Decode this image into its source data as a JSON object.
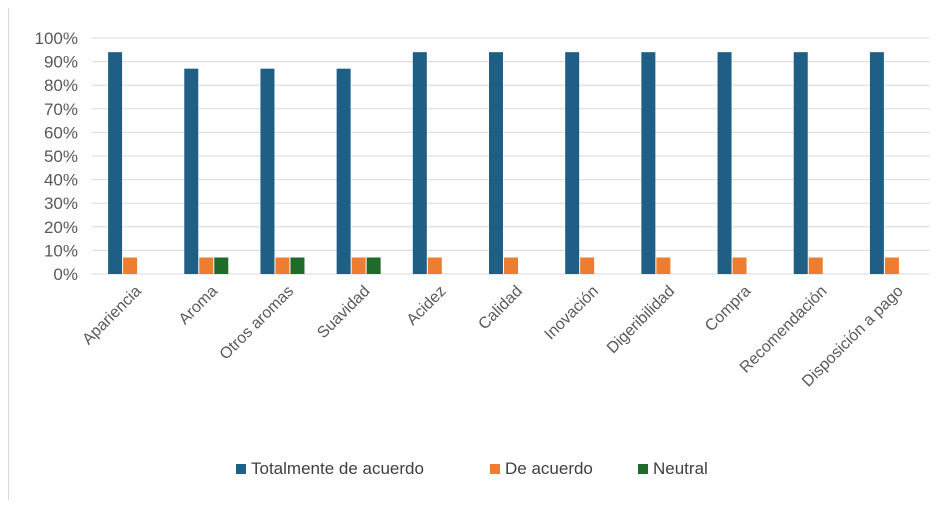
{
  "chart_data": {
    "type": "bar",
    "categories": [
      "Apariencia",
      "Aroma",
      "Otros aromas",
      "Suavidad",
      "Acidez",
      "Calidad",
      "Inovación",
      "Digeribilidad",
      "Compra",
      "Recomendación",
      "Disposición a pago"
    ],
    "series": [
      {
        "name": "Totalmente de acuerdo",
        "color": "#1f5f85",
        "values": [
          94,
          87,
          87,
          87,
          94,
          94,
          94,
          94,
          94,
          94,
          94
        ]
      },
      {
        "name": "De acuerdo",
        "color": "#ed7d31",
        "values": [
          7,
          7,
          7,
          7,
          7,
          7,
          7,
          7,
          7,
          7,
          7
        ]
      },
      {
        "name": "Neutral",
        "color": "#1e6b2c",
        "values": [
          0,
          7,
          7,
          7,
          0,
          0,
          0,
          0,
          0,
          0,
          0
        ]
      }
    ],
    "yticks": [
      "0%",
      "10%",
      "20%",
      "30%",
      "40%",
      "50%",
      "60%",
      "70%",
      "80%",
      "90%",
      "100%"
    ],
    "ylim": [
      0,
      100
    ],
    "grid": true,
    "legend_position": "bottom"
  }
}
